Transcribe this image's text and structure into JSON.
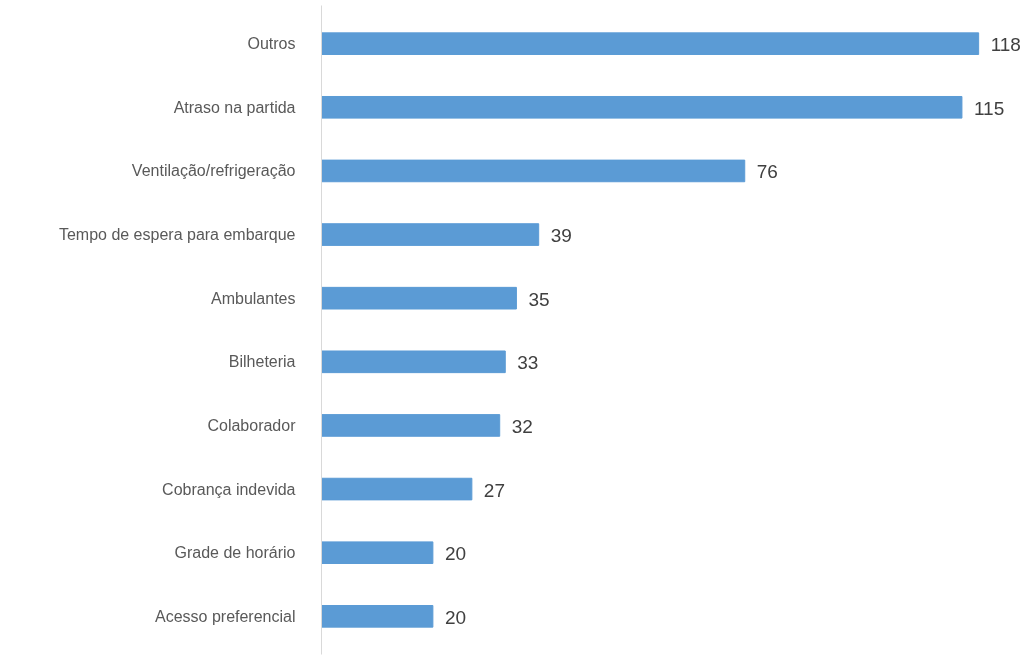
{
  "chart_data": {
    "type": "bar",
    "orientation": "horizontal",
    "categories": [
      "Outros",
      "Atraso na partida",
      "Ventilação/refrigeração",
      "Tempo de espera para embarque",
      "Ambulantes",
      "Bilheteria",
      "Colaborador",
      "Cobrança indevida",
      "Grade de horário",
      "Acesso preferencial"
    ],
    "values": [
      118,
      115,
      76,
      39,
      35,
      33,
      32,
      27,
      20,
      20
    ],
    "color": "#5b9bd5",
    "data_labels": true,
    "grid": false,
    "tick_labels": "y"
  }
}
